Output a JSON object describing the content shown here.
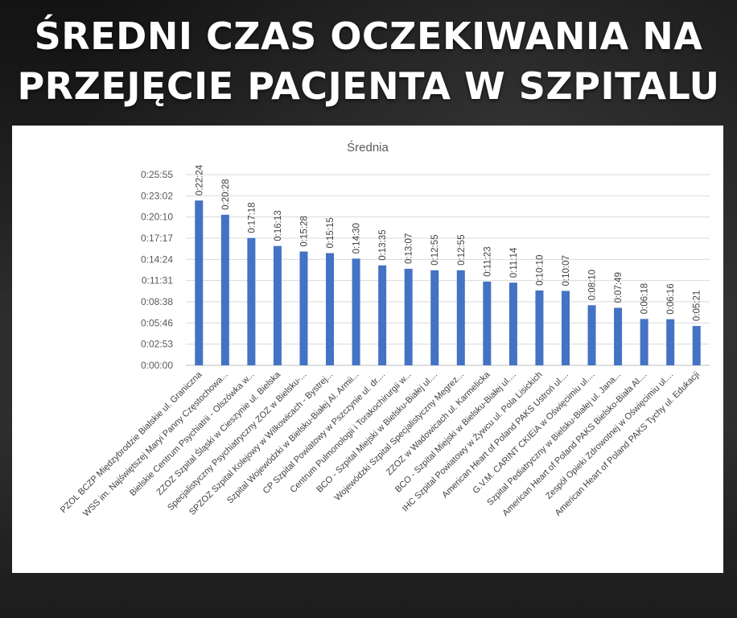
{
  "headline": {
    "line1": "ŚREDNI CZAS OCZEKIWANIA NA",
    "line2": "PRZEJĘCIE PACJENTA W SZPITALU"
  },
  "chart_data": {
    "type": "bar",
    "title": "Średnia",
    "xlabel": "",
    "ylabel": "",
    "ylim": [
      "0:00:00",
      "0:25:55"
    ],
    "yticks": [
      "0:00:00",
      "0:02:53",
      "0:05:46",
      "0:08:38",
      "0:11:31",
      "0:14:24",
      "0:17:17",
      "0:20:10",
      "0:23:02",
      "0:25:55"
    ],
    "bar_color": "#4472C4",
    "grid": true,
    "categories": [
      "PZOL BCZP Międzybrodzie Bialskie ul. Graniczna",
      "WSS im. Najświętszej Maryi Panny Częstochowa...",
      "Bielskie Centrum Psychiatrii - Olszówka w...",
      "ZZOZ Szpital Śląski w Cieszynie ul. Bielska",
      "Specjalistyczny Psychiatryczny ZOZ w Bielsku-...",
      "SPZOZ Szpital Kolejowy w Wilkowicach - Bystrej...",
      "Szpital Wojewódzki w Bielsku-Białej Al. Armii...",
      "CP Szpital Powiatowy w Pszczynie ul. dr....",
      "Centrum Pulmonologii i Torakochirurgii w...",
      "BCO - Szpital Miejski w Bielsku-Białej ul....",
      "Wojewódzki Szpital Specjalistyczny Megrez...",
      "ZZOZ w Wadowicach ul. Karmelicka",
      "BCO - Szpital Miejski w Bielsku-Białej ul....",
      "IHC Szpital Powiatowy w Żywcu ul. Pola Lisickich",
      "American Heart of Poland PAKS Ustroń ul....",
      "G.V.M. CARINT CKIEiA w Oświęcimiu ul....",
      "Szpital Pediatryczny w Bielsku-Białej ul. Jana...",
      "American Heart of Poland PAKS Bielsko-Biała Al....",
      "Zespół Opieki Zdrowotnej w Oświęcimiu ul....",
      "American Heart of Poland PAKS Tychy ul. Edukacji"
    ],
    "values": [
      "0:22:24",
      "0:20:28",
      "0:17:18",
      "0:16:13",
      "0:15:28",
      "0:15:15",
      "0:14:30",
      "0:13:35",
      "0:13:07",
      "0:12:55",
      "0:12:55",
      "0:11:23",
      "0:11:14",
      "0:10:10",
      "0:10:07",
      "0:08:10",
      "0:07:49",
      "0:06:18",
      "0:06:16",
      "0:05:21"
    ]
  }
}
